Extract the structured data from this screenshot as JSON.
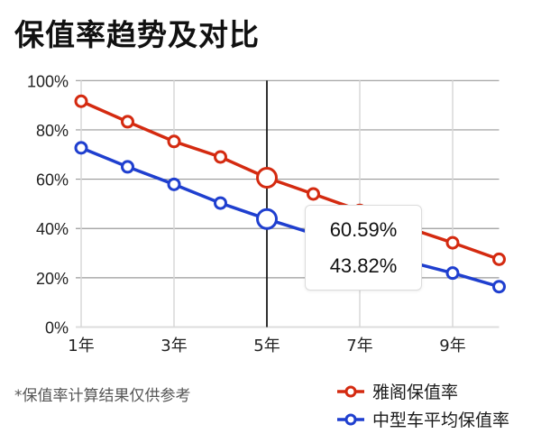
{
  "header": {
    "title": "保值率趋势及对比"
  },
  "footnote": "*保值率计算结果仅供参考",
  "tooltip": {
    "line1": "60.59%",
    "line2": "43.82%"
  },
  "legend": [
    {
      "label": "雅阁保值率",
      "color": "#d42a10"
    },
    {
      "label": "中型车平均保值率",
      "color": "#1f3fcf"
    }
  ],
  "chart_data": {
    "type": "line",
    "title": "保值率趋势及对比",
    "xlabel": "",
    "ylabel": "",
    "x": [
      1,
      2,
      3,
      4,
      5,
      6,
      7,
      8,
      9,
      10
    ],
    "x_tick_labels": [
      "1年",
      "3年",
      "5年",
      "7年",
      "9年"
    ],
    "x_tick_values": [
      1,
      3,
      5,
      7,
      9
    ],
    "y_tick_labels": [
      "0%",
      "20%",
      "40%",
      "60%",
      "80%",
      "100%"
    ],
    "ylim": [
      0,
      100
    ],
    "grid": true,
    "legend_position": "bottom-right",
    "highlight_index": 4,
    "series": [
      {
        "name": "雅阁保值率",
        "color": "#d42a10",
        "values": [
          91.6,
          83.3,
          75.3,
          69.0,
          60.59,
          54.0,
          47.3,
          40.5,
          34.2,
          27.5
        ]
      },
      {
        "name": "中型车平均保值率",
        "color": "#1f3fcf",
        "values": [
          72.7,
          65.0,
          57.9,
          50.3,
          43.82,
          37.9,
          32.2,
          26.8,
          21.9,
          16.4
        ]
      }
    ],
    "annotations": [
      {
        "type": "tooltip",
        "x": 5,
        "text": [
          "60.59%",
          "43.82%"
        ]
      }
    ]
  }
}
